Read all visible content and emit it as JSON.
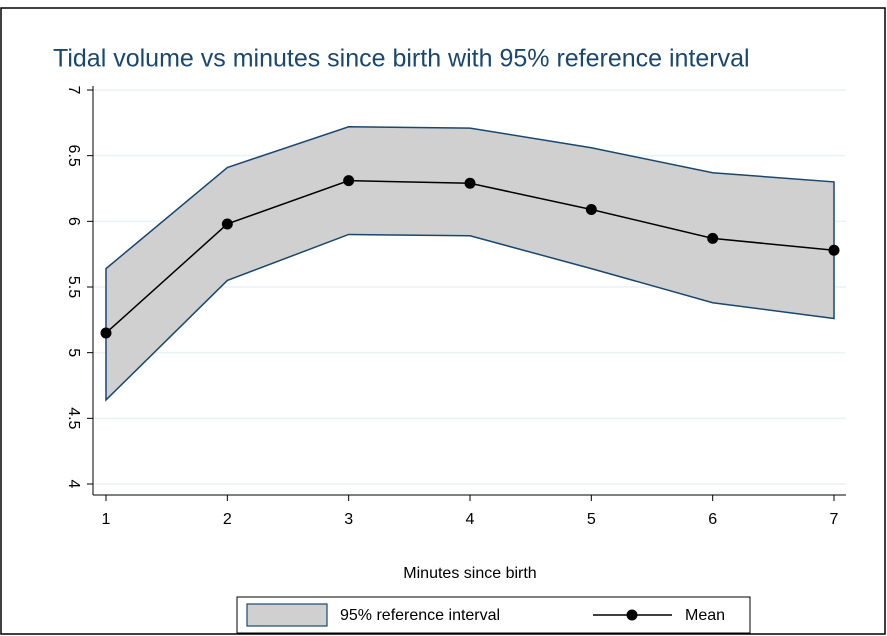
{
  "chart_data": {
    "type": "line",
    "title": "Tidal volume vs minutes since birth with 95% reference interval",
    "xlabel": "Minutes since birth",
    "x": [
      1,
      2,
      3,
      4,
      5,
      6,
      7
    ],
    "xlim": [
      1,
      7
    ],
    "xticks": [
      1,
      2,
      3,
      4,
      5,
      6,
      7
    ],
    "ylim": [
      4,
      7
    ],
    "yticks": [
      4,
      4.5,
      5,
      5.5,
      6,
      6.5,
      7
    ],
    "grid": true,
    "series": [
      {
        "name": "95% reference interval",
        "color": "#d0d0d0",
        "upper": [
          5.64,
          6.41,
          6.72,
          6.71,
          6.56,
          6.37,
          6.3
        ],
        "lower": [
          4.64,
          5.55,
          5.9,
          5.89,
          5.64,
          5.38,
          5.26
        ]
      },
      {
        "name": "Mean",
        "color": "#000000",
        "values": [
          5.15,
          5.98,
          6.31,
          6.29,
          6.09,
          5.87,
          5.78
        ]
      }
    ]
  }
}
